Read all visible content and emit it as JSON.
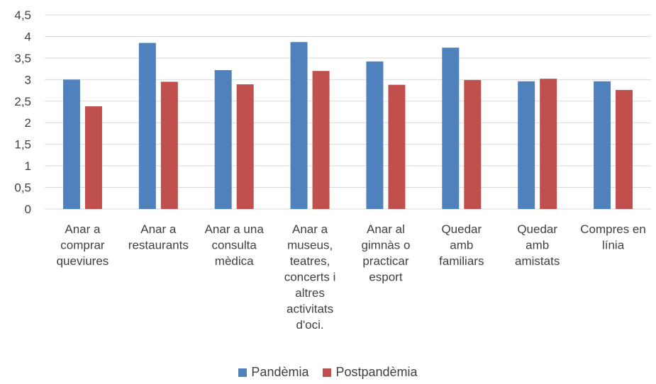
{
  "chart_data": {
    "type": "bar",
    "categories": [
      [
        "Anar a",
        "comprar",
        "queviures"
      ],
      [
        "Anar a",
        "restaurants"
      ],
      [
        "Anar a una",
        "consulta",
        "mèdica"
      ],
      [
        "Anar a",
        "museus,",
        "teatres,",
        "concerts i",
        "altres",
        "activitats",
        "d'oci."
      ],
      [
        "Anar al",
        "gimnàs o",
        "practicar",
        "esport"
      ],
      [
        "Quedar",
        "amb",
        "familiars"
      ],
      [
        "Quedar",
        "amb",
        "amistats"
      ],
      [
        "Compres en",
        "línia"
      ]
    ],
    "series": [
      {
        "name": "Pandèmia",
        "color": "#4f81bd",
        "values": [
          3.0,
          3.85,
          3.22,
          3.87,
          3.42,
          3.74,
          2.96,
          2.96
        ]
      },
      {
        "name": "Postpandèmia",
        "color": "#c0504d",
        "values": [
          2.38,
          2.95,
          2.89,
          3.2,
          2.88,
          2.99,
          3.02,
          2.76
        ]
      }
    ],
    "ylim": [
      0,
      4.5
    ],
    "yticks": [
      "0",
      "0,5",
      "1",
      "1,5",
      "2",
      "2,5",
      "3",
      "3,5",
      "4",
      "4,5"
    ],
    "grid": true,
    "legend_position": "bottom"
  }
}
